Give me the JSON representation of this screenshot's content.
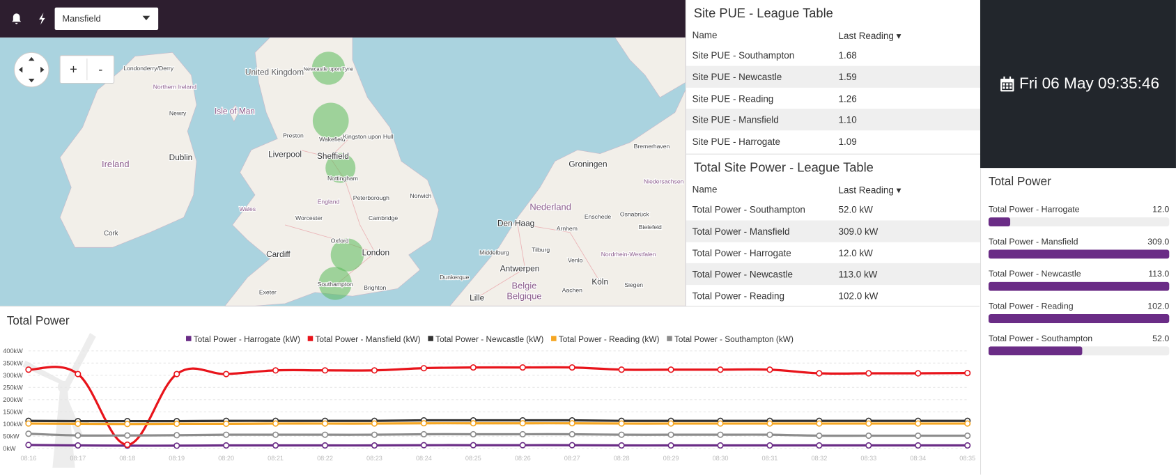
{
  "toolbar": {
    "site_select": "Mansfield"
  },
  "map": {
    "zoom_in": "+",
    "zoom_out": "-",
    "labels": [
      "United Kingdom",
      "Londonderry/Derry",
      "Northern Ireland",
      "Newry",
      "Isle of Man",
      "Ireland",
      "Dublin",
      "Cork",
      "Liverpool",
      "Preston",
      "Sheffield",
      "Wakefield",
      "Kingston upon Hull",
      "Newcastle upon Tyne",
      "Nottingham",
      "Peterborough",
      "Norwich",
      "Wales",
      "England",
      "Worcester",
      "Cambridge",
      "Oxford",
      "London",
      "Cardiff",
      "Southampton",
      "Brighton",
      "Exeter",
      "Groningen",
      "Bremerhaven",
      "Niedersachsen",
      "Nederland",
      "Den Haag",
      "Arnhem",
      "Enschede",
      "Osnabrück",
      "Bielefeld",
      "Middelburg",
      "Tilburg",
      "Venlo",
      "Nordrhein-Westfalen",
      "Antwerpen",
      "Dunkerque",
      "Köln",
      "Siegen",
      "Aachen",
      "Lille",
      "Belgie",
      "Belgique"
    ]
  },
  "pue_table": {
    "title": "Site PUE - League Table",
    "columns": [
      "Name",
      "Last Reading ▾"
    ],
    "rows": [
      [
        "Site PUE - Southampton",
        "1.68"
      ],
      [
        "Site PUE - Newcastle",
        "1.59"
      ],
      [
        "Site PUE - Reading",
        "1.26"
      ],
      [
        "Site PUE - Mansfield",
        "1.10"
      ],
      [
        "Site PUE - Harrogate",
        "1.09"
      ]
    ]
  },
  "power_table": {
    "title": "Total Site Power - League Table",
    "columns": [
      "Name",
      "Last Reading ▾"
    ],
    "rows": [
      [
        "Total Power - Southampton",
        "52.0 kW"
      ],
      [
        "Total Power - Mansfield",
        "309.0 kW"
      ],
      [
        "Total Power - Harrogate",
        "12.0 kW"
      ],
      [
        "Total Power - Newcastle",
        "113.0 kW"
      ],
      [
        "Total Power - Reading",
        "102.0 kW"
      ]
    ]
  },
  "clock": {
    "text": "Fri 06 May 09:35:46"
  },
  "power_bars": {
    "title": "Total Power",
    "range": [
      0,
      100
    ],
    "color": "#6a2c86",
    "names": [
      "Total Power - Harrogate",
      "Total Power - Mansfield",
      "Total Power - Newcastle",
      "Total Power - Reading",
      "Total Power - Southampton"
    ],
    "values": [
      12,
      309,
      113,
      102,
      52
    ],
    "value_labels": [
      "12.0",
      "309.0",
      "113.0",
      "102.0",
      "52.0"
    ]
  },
  "chart_data": {
    "type": "line",
    "title": "Total Power",
    "categories": [
      "08:16",
      "08:17",
      "08:18",
      "08:19",
      "08:20",
      "08:21",
      "08:22",
      "08:23",
      "08:24",
      "08:25",
      "08:26",
      "08:27",
      "08:28",
      "08:29",
      "08:30",
      "08:31",
      "08:32",
      "08:33",
      "08:34",
      "08:35"
    ],
    "series": [
      {
        "name": "Total Power - Harrogate (kW)",
        "color": "#6a2c86",
        "values": [
          14,
          12,
          11,
          11,
          12,
          12,
          12,
          12,
          13,
          13,
          13,
          13,
          12,
          12,
          12,
          12,
          12,
          12,
          12,
          12
        ]
      },
      {
        "name": "Total Power - Mansfield (kW)",
        "color": "#e8141b",
        "values": [
          323,
          305,
          15,
          305,
          305,
          320,
          320,
          320,
          329,
          332,
          332,
          332,
          323,
          323,
          323,
          323,
          308,
          308,
          308,
          309
        ]
      },
      {
        "name": "Total Power - Newcastle (kW)",
        "color": "#333333",
        "values": [
          113,
          112,
          112,
          112,
          113,
          113,
          113,
          113,
          115,
          115,
          115,
          115,
          113,
          113,
          113,
          113,
          113,
          113,
          113,
          113
        ]
      },
      {
        "name": "Total Power - Reading (kW)",
        "color": "#f5a623",
        "values": [
          102,
          101,
          100,
          101,
          101,
          102,
          102,
          102,
          103,
          103,
          103,
          103,
          102,
          102,
          102,
          102,
          102,
          102,
          102,
          102
        ]
      },
      {
        "name": "Total Power - Southampton (kW)",
        "color": "#8c8c8c",
        "values": [
          60,
          53,
          53,
          54,
          56,
          56,
          56,
          56,
          58,
          58,
          58,
          58,
          56,
          56,
          56,
          56,
          52,
          52,
          52,
          52
        ]
      }
    ],
    "ylim": [
      0,
      400
    ],
    "yticks": [
      {
        "value": 0,
        "label": "0kW"
      },
      {
        "value": 50,
        "label": "50kW"
      },
      {
        "value": 100,
        "label": "100kW"
      },
      {
        "value": 150,
        "label": "150kW"
      },
      {
        "value": 200,
        "label": "200kW"
      },
      {
        "value": 250,
        "label": "250kW"
      },
      {
        "value": 300,
        "label": "300kW"
      },
      {
        "value": 350,
        "label": "350kW"
      },
      {
        "value": 400,
        "label": "400kW"
      }
    ],
    "grid": true,
    "legend": "top"
  }
}
